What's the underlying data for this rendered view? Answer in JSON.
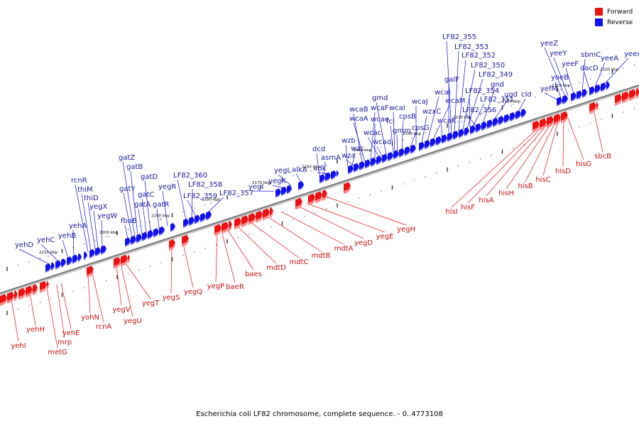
{
  "legend": {
    "forward_label": "Forward",
    "reverse_label": "Reverse",
    "forward_color": "#ee1111",
    "reverse_color": "#1111ee"
  },
  "caption": "Escherichia coli LF82 chromosome, complete sequence. - 0..4773108",
  "map": {
    "kbp_ticks": [
      "2210 kbp",
      "2200 kbp",
      "2190 kbp",
      "2180 kbp",
      "2170 kbp",
      "2160 kbp",
      "2150 kbp",
      "2140 kbp",
      "2130 kbp",
      "2120 kbp",
      "2110 kbp",
      "2100 kbp"
    ],
    "reverse_genes": [
      "yehD",
      "yehC",
      "yehB",
      "yehA",
      "rcnR",
      "thiM",
      "thiD",
      "yegX",
      "yegW",
      "fbaB",
      "gatY",
      "gatZ",
      "gatB",
      "gatA",
      "gatC",
      "gatD",
      "gatR",
      "yegR",
      "LF82_360",
      "LF82_358",
      "LF82_359",
      "LF82_357",
      "yegI",
      "yegK",
      "yegL",
      "alkA",
      "dcd",
      "asmA",
      "udk",
      "wzb",
      "wzc",
      "wza",
      "wcaB",
      "wcaA",
      "wcaF",
      "wcae",
      "wcac",
      "wcad",
      "gmd",
      "fcl",
      "wcaI",
      "gmm",
      "cpsB",
      "cpsG",
      "wcaJ",
      "wzxC",
      "wcaI",
      "wcaM",
      "wcaK",
      "galF",
      "LF82_355",
      "LF82_353",
      "LF82_352",
      "LF82_350",
      "LF82_349",
      "LF82_354",
      "LF82_351",
      "LF82_356",
      "gnd",
      "ugd",
      "cld",
      "yefM",
      "yoeB",
      "yeeZ",
      "yeeY",
      "yeeF",
      "sbmC",
      "dacD",
      "yeeA",
      "yeex"
    ],
    "forward_genes": [
      "yehI",
      "yehH",
      "metG",
      "mrp",
      "yehE",
      "yohN",
      "rcnA",
      "yegV",
      "yegU",
      "yegT",
      "yegS",
      "yegQ",
      "yegP",
      "baeR",
      "baes",
      "mdtD",
      "mdtC",
      "mdtB",
      "mdtA",
      "yegD",
      "yegE",
      "yegH",
      "hisI",
      "hisF",
      "hisA",
      "hisH",
      "hisB",
      "hisC",
      "hisD",
      "hisG",
      "sbcB"
    ]
  }
}
